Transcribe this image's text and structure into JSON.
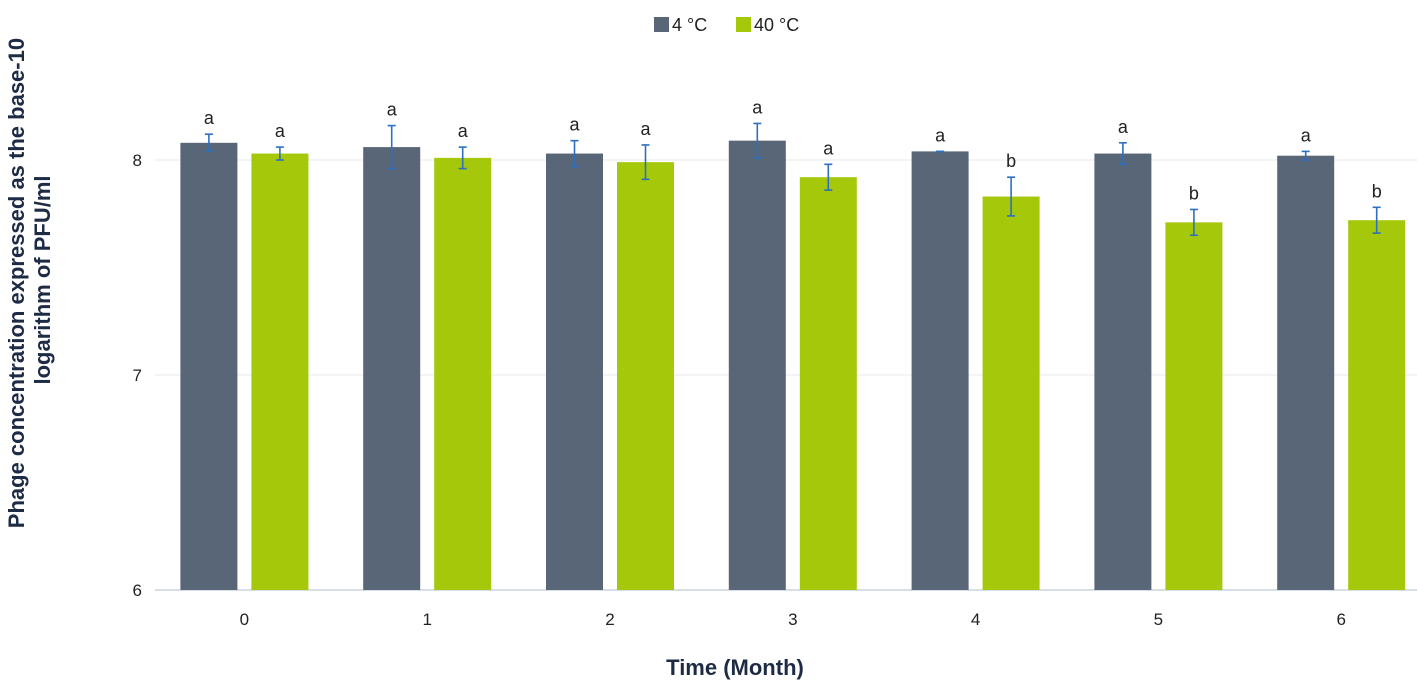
{
  "chart_data": {
    "type": "bar",
    "title": "",
    "xlabel": "Time (Month)",
    "ylabel_lines": [
      "Phage concentration expressed as the base-10",
      "logarithm of PFU/ml"
    ],
    "categories": [
      "0",
      "1",
      "2",
      "3",
      "4",
      "5",
      "6"
    ],
    "ylim": [
      6,
      8.5
    ],
    "yticks": [
      "6",
      "7",
      "8"
    ],
    "grid": true,
    "legend_position": "top-center",
    "series": [
      {
        "name": "4 °C",
        "color": "#586678",
        "values": [
          8.08,
          8.06,
          8.03,
          8.09,
          8.04,
          8.03,
          8.02
        ],
        "errors": [
          0.04,
          0.1,
          0.06,
          0.08,
          0.0,
          0.05,
          0.02
        ],
        "labels": [
          "a",
          "a",
          "a",
          "a",
          "a",
          "a",
          "a"
        ]
      },
      {
        "name": "40 °C",
        "color": "#a6c80a",
        "values": [
          8.03,
          8.01,
          7.99,
          7.92,
          7.83,
          7.71,
          7.72
        ],
        "errors": [
          0.03,
          0.05,
          0.08,
          0.06,
          0.09,
          0.06,
          0.06
        ],
        "labels": [
          "a",
          "a",
          "a",
          "a",
          "b",
          "b",
          "b"
        ]
      }
    ],
    "error_bar_color": "#2d6fc0"
  }
}
